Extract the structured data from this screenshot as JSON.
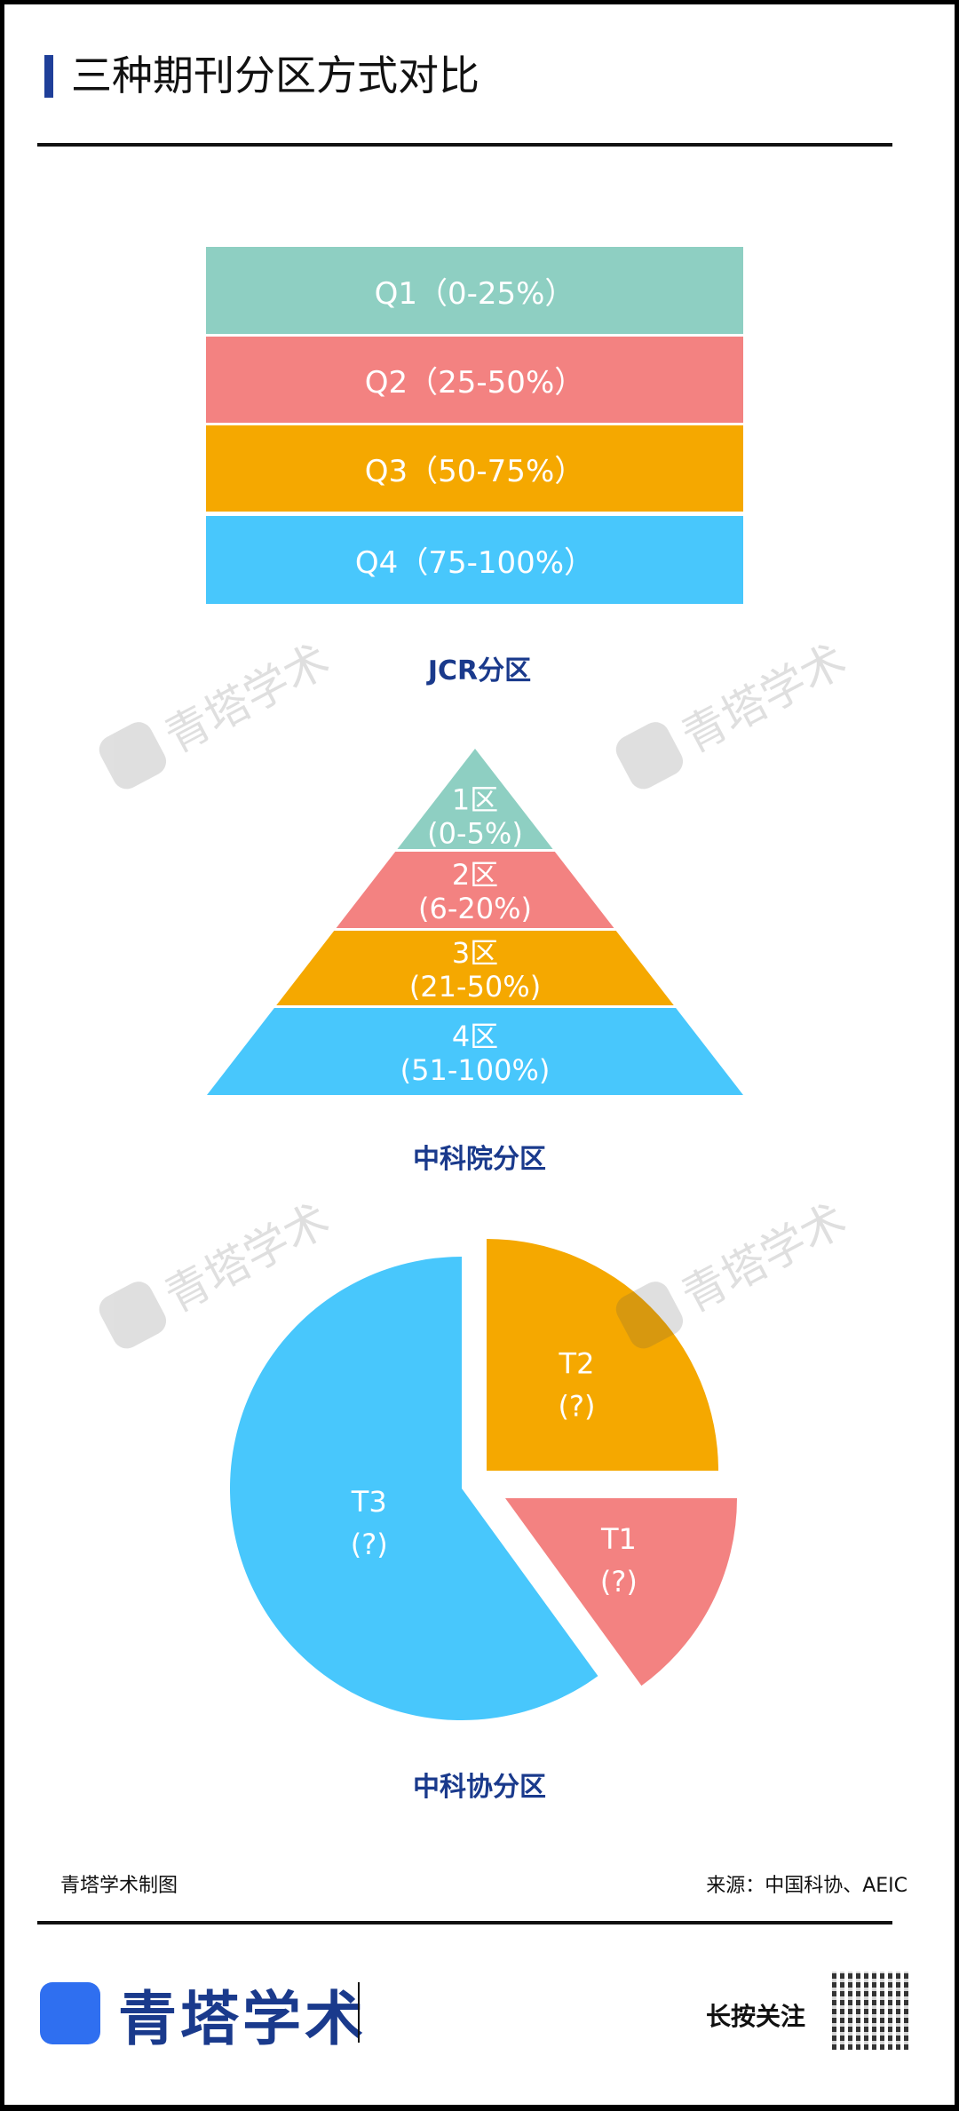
{
  "title": "三种期刊分区方式对比",
  "jcr": {
    "caption": "JCR分区",
    "bands": [
      {
        "label": "Q1（0-25%）",
        "color": "#8ecfc2"
      },
      {
        "label": "Q2（25-50%）",
        "color": "#f38281"
      },
      {
        "label": "Q3（50-75%）",
        "color": "#f5a800"
      },
      {
        "label": "Q4（75-100%）",
        "color": "#48c7fc"
      }
    ]
  },
  "cas": {
    "caption": "中科院分区",
    "levels": [
      {
        "name": "1区",
        "range": "(0-5%)",
        "color": "#8ecfc2"
      },
      {
        "name": "2区",
        "range": "(6-20%)",
        "color": "#f38281"
      },
      {
        "name": "3区",
        "range": "(21-50%)",
        "color": "#f5a800"
      },
      {
        "name": "4区",
        "range": "(51-100%)",
        "color": "#48c7fc"
      }
    ]
  },
  "cast": {
    "caption": "中科协分区",
    "slices": [
      {
        "name": "T2",
        "value": "(?)",
        "share": 25,
        "color": "#f5a800"
      },
      {
        "name": "T1",
        "value": "(?)",
        "share": 15,
        "color": "#f38281"
      },
      {
        "name": "T3",
        "value": "(?)",
        "share": 60,
        "color": "#48c7fc"
      }
    ]
  },
  "watermark": "青塔学术",
  "footer": {
    "credit": "青塔学术制图",
    "source": "来源：中国科协、AEIC",
    "brand": "青塔学术",
    "follow": "长按关注"
  }
}
